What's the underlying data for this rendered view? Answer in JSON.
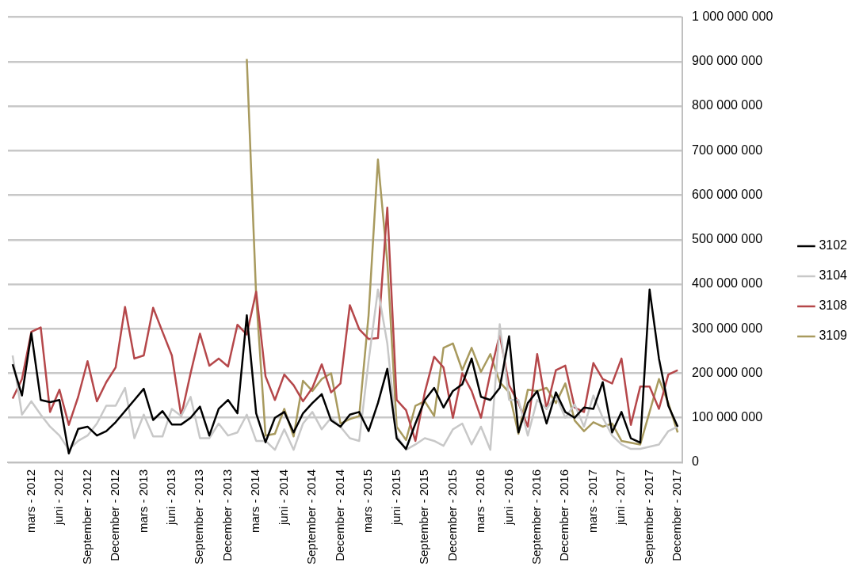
{
  "chart_data": {
    "type": "line",
    "categories": [
      null,
      null,
      "mars - 2012",
      null,
      null,
      "juni - 2012",
      null,
      null,
      "September - 2012",
      null,
      null,
      "December - 2012",
      null,
      null,
      "mars - 2013",
      null,
      null,
      "juni - 2013",
      null,
      null,
      "September - 2013",
      null,
      null,
      "December - 2013",
      null,
      null,
      "mars - 2014",
      null,
      null,
      "juni - 2014",
      null,
      null,
      "September - 2014",
      null,
      null,
      "December - 2014",
      null,
      null,
      "mars - 2015",
      null,
      null,
      "juni - 2015",
      null,
      null,
      "September - 2015",
      null,
      null,
      "December - 2015",
      null,
      null,
      "mars - 2016",
      null,
      null,
      "juni - 2016",
      null,
      null,
      "September - 2016",
      null,
      null,
      "December - 2016",
      null,
      null,
      "mars - 2017",
      null,
      null,
      "juni - 2017",
      null,
      null,
      "September - 2017",
      null,
      null,
      "December - 2017"
    ],
    "series": [
      {
        "name": "3102",
        "color": "#000000",
        "values": [
          220000000,
          150000000,
          290000000,
          140000000,
          135000000,
          140000000,
          20000000,
          75000000,
          80000000,
          60000000,
          70000000,
          90000000,
          115000000,
          140000000,
          165000000,
          95000000,
          115000000,
          85000000,
          85000000,
          100000000,
          125000000,
          60000000,
          120000000,
          140000000,
          110000000,
          330000000,
          110000000,
          45000000,
          100000000,
          113000000,
          67000000,
          110000000,
          133000000,
          153000000,
          94000000,
          80000000,
          107000000,
          113000000,
          70000000,
          133000000,
          210000000,
          54000000,
          30000000,
          87000000,
          140000000,
          167000000,
          123000000,
          160000000,
          175000000,
          233000000,
          147000000,
          140000000,
          167000000,
          283000000,
          67000000,
          133000000,
          160000000,
          87000000,
          157000000,
          113000000,
          100000000,
          123000000,
          120000000,
          180000000,
          67000000,
          113000000,
          54000000,
          44000000,
          388000000,
          233000000,
          127000000,
          80000000
        ]
      },
      {
        "name": "3104",
        "color": "#c8c8c8",
        "values": [
          240000000,
          107000000,
          137000000,
          107000000,
          80000000,
          60000000,
          28000000,
          48000000,
          60000000,
          87000000,
          127000000,
          127000000,
          167000000,
          54000000,
          107000000,
          58000000,
          58000000,
          120000000,
          104000000,
          147000000,
          54000000,
          54000000,
          87000000,
          60000000,
          67000000,
          107000000,
          48000000,
          48000000,
          28000000,
          74000000,
          28000000,
          87000000,
          113000000,
          74000000,
          100000000,
          80000000,
          54000000,
          48000000,
          227000000,
          388000000,
          267000000,
          60000000,
          28000000,
          40000000,
          54000000,
          48000000,
          37000000,
          74000000,
          87000000,
          40000000,
          80000000,
          28000000,
          310000000,
          140000000,
          140000000,
          60000000,
          140000000,
          120000000,
          150000000,
          100000000,
          130000000,
          80000000,
          150000000,
          100000000,
          60000000,
          40000000,
          30000000,
          30000000,
          35000000,
          40000000,
          70000000,
          80000000
        ]
      },
      {
        "name": "3108",
        "color": "#b5474a",
        "values": [
          143000000,
          187000000,
          293000000,
          303000000,
          113000000,
          163000000,
          84000000,
          147000000,
          227000000,
          137000000,
          180000000,
          213000000,
          349000000,
          233000000,
          240000000,
          347000000,
          293000000,
          240000000,
          104000000,
          200000000,
          289000000,
          217000000,
          233000000,
          215000000,
          309000000,
          287000000,
          383000000,
          193000000,
          140000000,
          197000000,
          173000000,
          137000000,
          167000000,
          220000000,
          157000000,
          177000000,
          353000000,
          299000000,
          277000000,
          279000000,
          572000000,
          140000000,
          117000000,
          48000000,
          157000000,
          237000000,
          213000000,
          100000000,
          200000000,
          160000000,
          100000000,
          200000000,
          287000000,
          173000000,
          133000000,
          80000000,
          243000000,
          120000000,
          207000000,
          217000000,
          123000000,
          113000000,
          223000000,
          187000000,
          177000000,
          233000000,
          84000000,
          170000000,
          170000000,
          120000000,
          197000000,
          207000000
        ]
      },
      {
        "name": "3109",
        "color": "#a89a5e",
        "values": [
          null,
          null,
          null,
          null,
          null,
          null,
          null,
          null,
          null,
          null,
          null,
          null,
          null,
          null,
          null,
          null,
          null,
          null,
          null,
          null,
          null,
          null,
          null,
          null,
          null,
          906000000,
          373000000,
          60000000,
          64000000,
          120000000,
          58000000,
          183000000,
          160000000,
          187000000,
          200000000,
          87000000,
          97000000,
          104000000,
          330000000,
          680000000,
          450000000,
          80000000,
          50000000,
          127000000,
          137000000,
          104000000,
          257000000,
          267000000,
          207000000,
          257000000,
          203000000,
          243000000,
          180000000,
          157000000,
          64000000,
          163000000,
          160000000,
          167000000,
          133000000,
          177000000,
          94000000,
          70000000,
          90000000,
          80000000,
          87000000,
          48000000,
          44000000,
          40000000,
          113000000,
          187000000,
          133000000,
          67000000
        ]
      }
    ],
    "ylim": [
      0,
      1000000000
    ],
    "yticks": [
      0,
      {
        "value": 100000000,
        "label": "100 000 000"
      },
      {
        "value": 200000000,
        "label": "200 000 000"
      },
      {
        "value": 300000000,
        "label": "300 000 000"
      },
      {
        "value": 400000000,
        "label": "400 000 000"
      },
      {
        "value": 500000000,
        "label": "500 000 000"
      },
      {
        "value": 600000000,
        "label": "600 000 000"
      },
      {
        "value": 700000000,
        "label": "700 000 000"
      },
      {
        "value": 800000000,
        "label": "800 000 000"
      },
      {
        "value": 900000000,
        "label": "900 000 000"
      },
      {
        "value": 1000000000,
        "label": "1 000 000 000"
      }
    ],
    "grid": "y",
    "legend": "right",
    "marker": "none",
    "line_style": "solid"
  }
}
